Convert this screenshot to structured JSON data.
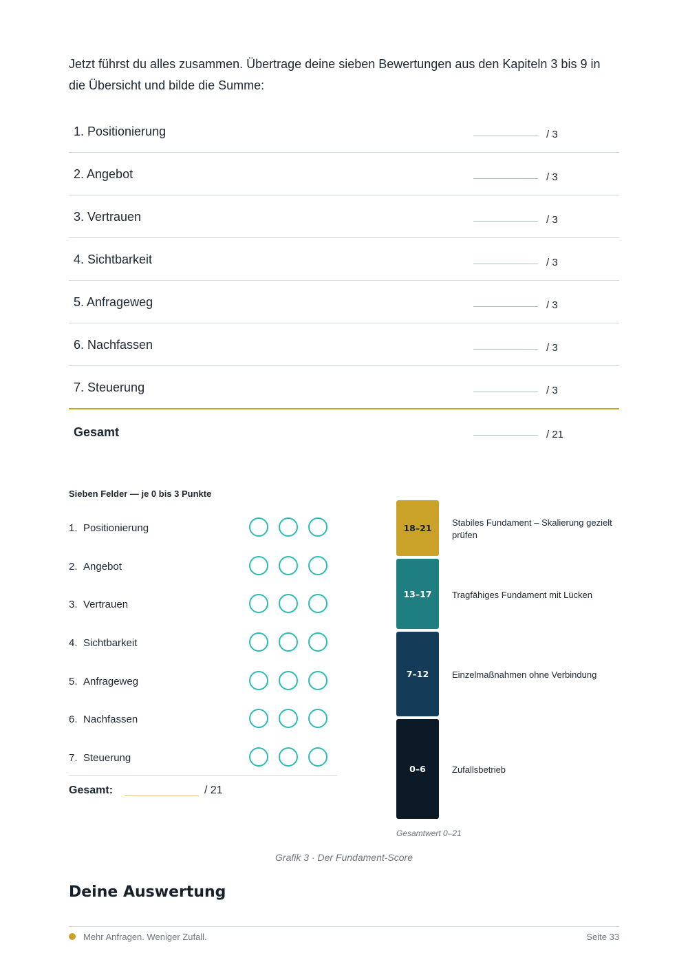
{
  "intro": "Jetzt führst du alles zusammen. Übertrage deine sieben Bewertungen aus den Kapiteln 3 bis 9 in die Übersicht und bilde die Summe:",
  "score_table": {
    "rows": [
      {
        "label": "1. Positionierung",
        "max": "/ 3"
      },
      {
        "label": "2. Angebot",
        "max": "/ 3"
      },
      {
        "label": "3. Vertrauen",
        "max": "/ 3"
      },
      {
        "label": "4. Sichtbarkeit",
        "max": "/ 3"
      },
      {
        "label": "5. Anfrageweg",
        "max": "/ 3"
      },
      {
        "label": "6. Nachfassen",
        "max": "/ 3"
      },
      {
        "label": "7. Steuerung",
        "max": "/ 3"
      }
    ],
    "total": {
      "label": "Gesamt",
      "max": "/ 21"
    }
  },
  "worksheet": {
    "title": "Sieben Felder — je 0 bis 3 Punkte",
    "items": [
      {
        "num": "1.",
        "name": "Positionierung"
      },
      {
        "num": "2.",
        "name": "Angebot"
      },
      {
        "num": "3.",
        "name": "Vertrauen"
      },
      {
        "num": "4.",
        "name": "Sichtbarkeit"
      },
      {
        "num": "5.",
        "name": "Anfrageweg"
      },
      {
        "num": "6.",
        "name": "Nachfassen"
      },
      {
        "num": "7.",
        "name": "Steuerung"
      }
    ],
    "total_label": "Gesamt:",
    "total_max": "/ 21"
  },
  "scale": {
    "bands": [
      {
        "range": "18–21",
        "desc": "Stabiles Fundament – Skalierung gezielt prüfen",
        "color": "#c9a227",
        "text_color": "#15202b"
      },
      {
        "range": "13–17",
        "desc": "Tragfähiges Fundament mit Lücken",
        "color": "#1f7f80",
        "text_color": "#ffffff"
      },
      {
        "range": "7–12",
        "desc": "Einzelmaßnahmen ohne Verbindung",
        "color": "#143b57",
        "text_color": "#ffffff"
      },
      {
        "range": "0–6",
        "desc": "Zufallsbetrieb",
        "color": "#0b1a26",
        "text_color": "#ffffff"
      }
    ],
    "caption": "Gesamtwert 0–21"
  },
  "figure_caption": "Grafik 3 · Der Fundament-Score",
  "section_heading": "Deine Auswertung",
  "footer": {
    "text": "Mehr Anfragen. Weniger Zufall.",
    "page": "Seite 33"
  },
  "colors": {
    "accent_gold": "#c9a227",
    "circle_teal": "#2dbcb3"
  }
}
